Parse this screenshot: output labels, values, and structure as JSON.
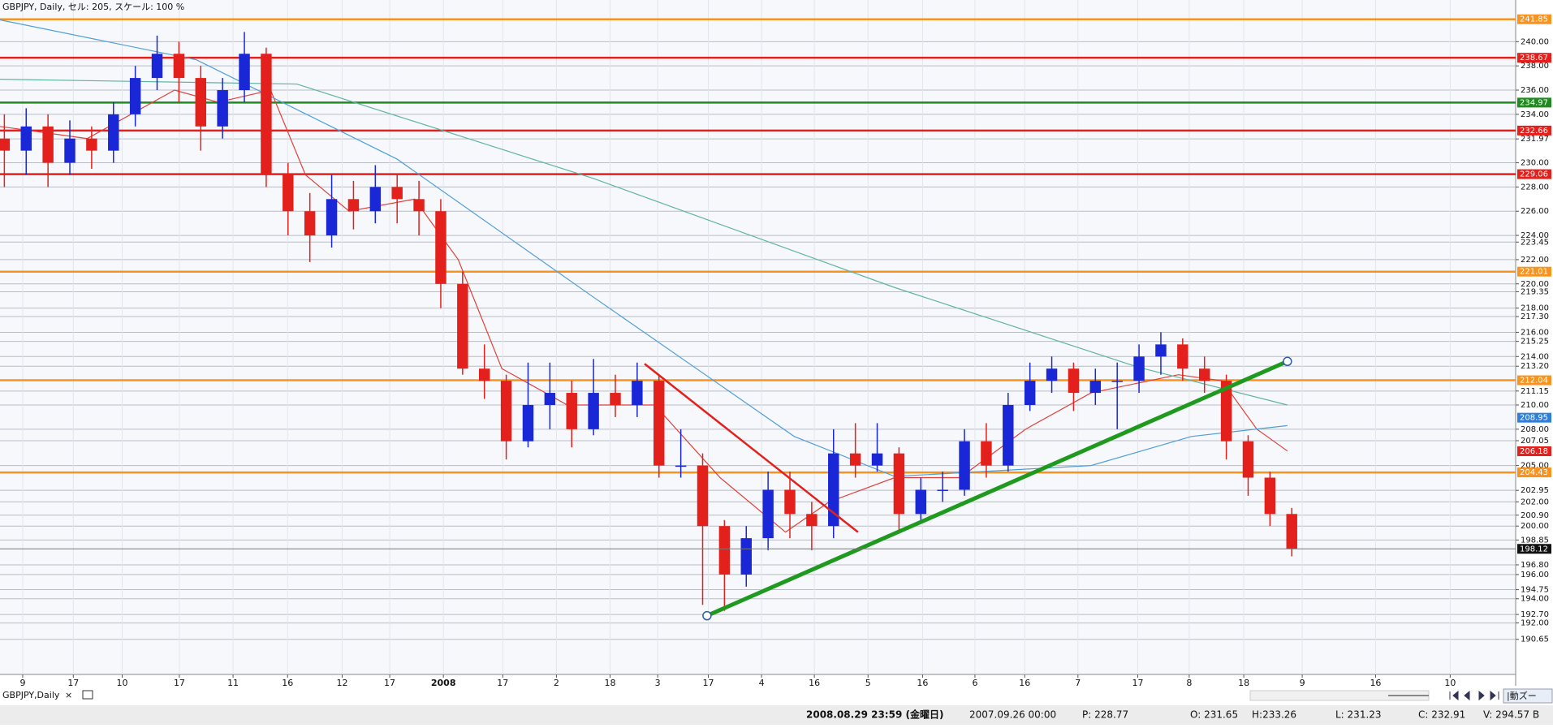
{
  "chart_data": {
    "type": "candlestick",
    "title": "GBPJPY, Daily, セル: 205, スケール: 100 %",
    "xlim": [
      0,
      347.3
    ],
    "ylim": [
      187.75,
      243.44
    ],
    "grid": true,
    "up_color": "#1a27d6",
    "down_color": "#e3201b",
    "x": [
      1,
      6,
      11,
      16,
      21,
      26,
      31,
      36,
      41,
      46,
      51,
      56,
      61,
      66,
      71,
      76,
      81,
      86,
      91,
      96,
      101,
      106,
      111,
      116,
      121,
      126,
      131,
      136,
      141,
      146,
      151,
      156,
      161,
      166,
      171,
      176,
      181,
      186,
      191,
      196,
      201,
      206,
      211,
      216,
      221,
      226,
      231,
      236,
      241,
      246,
      251,
      256,
      261,
      266,
      271,
      276,
      281,
      286,
      291,
      296
    ],
    "open": [
      232,
      231,
      233,
      230,
      232,
      231,
      234,
      237,
      239,
      237,
      233,
      236,
      239,
      229,
      226,
      224,
      227,
      226,
      228,
      227,
      226,
      220,
      213,
      212,
      207,
      210,
      211,
      208,
      211,
      210,
      212,
      205,
      205,
      200,
      196,
      199,
      203,
      201,
      200,
      206,
      205,
      206,
      201,
      203,
      203,
      207,
      205,
      210,
      212,
      213,
      211,
      212,
      212,
      214,
      215,
      213,
      212,
      207,
      204,
      201
    ],
    "high": [
      234,
      234.5,
      234,
      233.5,
      233,
      235,
      238,
      240.5,
      240,
      238,
      237,
      240.8,
      239.5,
      230,
      227.5,
      229,
      228.5,
      229.8,
      229,
      228.5,
      227,
      221,
      215,
      212.5,
      213.5,
      213.5,
      212,
      213.8,
      212.5,
      213.5,
      212.5,
      208,
      206,
      200.5,
      200,
      204.5,
      204.5,
      202,
      208,
      208.5,
      208.5,
      206.5,
      204,
      204.5,
      208,
      208.5,
      211,
      213.5,
      214,
      213.5,
      213,
      213.5,
      215,
      216,
      215.5,
      214,
      212.5,
      207.5,
      204.5,
      201.5
    ],
    "low": [
      228,
      229,
      228,
      229,
      229.5,
      230,
      233,
      236,
      235,
      231,
      232,
      235,
      228,
      224,
      221.8,
      223,
      224.5,
      225,
      225,
      224,
      218,
      212.5,
      210.5,
      205.5,
      206.5,
      208,
      206.5,
      207.5,
      209,
      209,
      204,
      204,
      193.5,
      193,
      195,
      198,
      199,
      198,
      199,
      204,
      204.5,
      199.5,
      200.5,
      202,
      202.5,
      204,
      204.5,
      209.5,
      211,
      209.5,
      210,
      208,
      211,
      212.5,
      212,
      211,
      205.5,
      202.5,
      200,
      197.5
    ],
    "close": [
      231,
      233,
      230,
      232,
      231,
      234,
      237,
      239,
      237,
      233,
      236,
      239,
      229,
      226,
      224,
      227,
      226,
      228,
      227,
      226,
      220,
      213,
      212,
      207,
      210,
      211,
      208,
      211,
      210,
      212,
      205,
      205,
      200,
      196,
      199,
      203,
      201,
      200,
      206,
      205,
      206,
      201,
      203,
      203,
      207,
      205,
      210,
      212,
      213,
      211,
      212,
      212,
      214,
      215,
      213,
      212,
      207,
      204,
      201,
      198.12
    ],
    "lines": [
      {
        "color": "#e0403a",
        "x": [
          0,
          20,
          40,
          50,
          62,
          70,
          80,
          95,
          105,
          115,
          130,
          150,
          165,
          180,
          190,
          205,
          220,
          235,
          250,
          270,
          280,
          288,
          295
        ],
        "values": [
          233,
          232,
          236,
          235,
          236,
          229,
          226,
          227,
          222,
          213,
          210,
          210,
          204,
          199.5,
          202,
          204,
          204,
          208,
          211,
          212.5,
          212,
          208,
          206.2
        ]
      },
      {
        "color": "#4f9fd8",
        "x": [
          0,
          45,
          91,
          136,
          182,
          205,
          250,
          273,
          295
        ],
        "values": [
          241.8,
          238.5,
          230.3,
          218.9,
          207.4,
          204.1,
          205,
          207.4,
          208.3
        ]
      },
      {
        "color": "#5fb3a0",
        "x": [
          0,
          68,
          136,
          205,
          261,
          295
        ],
        "values": [
          236.9,
          236.5,
          228.7,
          219.7,
          213.1,
          210
        ]
      }
    ],
    "trendlines": [
      {
        "color": "#e3201b",
        "x": [
          147.7,
          196.6
        ],
        "values": [
          213.4,
          199.5
        ]
      },
      {
        "color": "#1f9a1f",
        "x": [
          162,
          295
        ],
        "values": [
          192.6,
          213.6
        ]
      }
    ],
    "levels": [
      {
        "value": 241.85,
        "color": "#f7931e"
      },
      {
        "value": 238.67,
        "color": "#e3201b"
      },
      {
        "value": 234.97,
        "color": "#1f8a1f"
      },
      {
        "value": 232.66,
        "color": "#e3201b"
      },
      {
        "value": 229.06,
        "color": "#e3201b"
      },
      {
        "value": 221.01,
        "color": "#f7931e"
      },
      {
        "value": 212.04,
        "color": "#f7931e"
      },
      {
        "value": 204.43,
        "color": "#f7931e"
      }
    ],
    "price_labels": [
      {
        "value": 208.95,
        "color": "#2f7fd8"
      },
      {
        "value": 206.18,
        "color": "#e3201b"
      },
      {
        "value": 198.12,
        "color": "#111111"
      }
    ],
    "yticks": [
      {
        "value": 240,
        "label": "240.00"
      },
      {
        "value": 238,
        "label": "238.00"
      },
      {
        "value": 236,
        "label": "236.00"
      },
      {
        "value": 234,
        "label": "234.00"
      },
      {
        "value": 231.97,
        "label": "231.97"
      },
      {
        "value": 230,
        "label": "230.00"
      },
      {
        "value": 228,
        "label": "228.00"
      },
      {
        "value": 226,
        "label": "226.00"
      },
      {
        "value": 224,
        "label": "224.00"
      },
      223.45,
      {
        "value": 222,
        "label": "222.00"
      },
      {
        "value": 220,
        "label": "220.00"
      },
      219.35,
      {
        "value": 218,
        "label": "218.00"
      },
      {
        "value": 217.3,
        "label": "217.30"
      },
      {
        "value": 216,
        "label": "216.00"
      },
      215.25,
      {
        "value": 214,
        "label": "214.00"
      },
      {
        "value": 213.2,
        "label": "213.20"
      },
      211.15,
      {
        "value": 210,
        "label": "210.00"
      },
      {
        "value": 208,
        "label": "208.00"
      },
      207.05,
      {
        "value": 205,
        "label": "205.00"
      },
      202.95,
      {
        "value": 202,
        "label": "202.00"
      },
      {
        "value": 200.9,
        "label": "200.90"
      },
      {
        "value": 200,
        "label": "200.00"
      },
      198.85,
      {
        "value": 196.8,
        "label": "196.80"
      },
      {
        "value": 196,
        "label": "196.00"
      },
      194.75,
      {
        "value": 194,
        "label": "194.00"
      },
      {
        "value": 192.7,
        "label": "192.70"
      },
      {
        "value": 192,
        "label": "192.00"
      },
      190.65
    ],
    "xticks": [
      {
        "value": 5.2,
        "label": "9"
      },
      {
        "value": 16.8,
        "label": "17"
      },
      {
        "value": 28,
        "label": "10"
      },
      {
        "value": 41.1,
        "label": "17"
      },
      {
        "value": 53.4,
        "label": "11"
      },
      {
        "value": 65.9,
        "label": "16"
      },
      {
        "value": 78.4,
        "label": "12"
      },
      {
        "value": 89.3,
        "label": "17"
      },
      {
        "value": 101.6,
        "label": "2008"
      },
      {
        "value": 115.2,
        "label": "17"
      },
      {
        "value": 127.5,
        "label": "2"
      },
      {
        "value": 139.8,
        "label": "18"
      },
      {
        "value": 150.7,
        "label": "3"
      },
      {
        "value": 162.3,
        "label": "17"
      },
      {
        "value": 174.5,
        "label": "4"
      },
      {
        "value": 186.6,
        "label": "16"
      },
      {
        "value": 198.9,
        "label": "5"
      },
      {
        "value": 211.4,
        "label": "16"
      },
      {
        "value": 223.4,
        "label": "6"
      },
      {
        "value": 234.8,
        "label": "16"
      },
      {
        "value": 247,
        "label": "7"
      },
      {
        "value": 260.7,
        "label": "17"
      },
      {
        "value": 272.5,
        "label": "8"
      },
      {
        "value": 285,
        "label": "18"
      },
      {
        "value": 298.4,
        "label": "9"
      },
      {
        "value": 315.2,
        "label": "16"
      },
      {
        "value": 332.3,
        "label": "10"
      }
    ]
  },
  "tab": {
    "label": "GBPJPY,Daily",
    "close": "×",
    "button": "|動ズー"
  },
  "status": [
    "2008.08.29 23:59 (金曜日)",
    "2007.09.26 00:00",
    "P: 228.77",
    "O: 231.65",
    "H:233.26",
    "L: 231.23",
    "C: 232.91",
    "V: 294.57 B"
  ]
}
